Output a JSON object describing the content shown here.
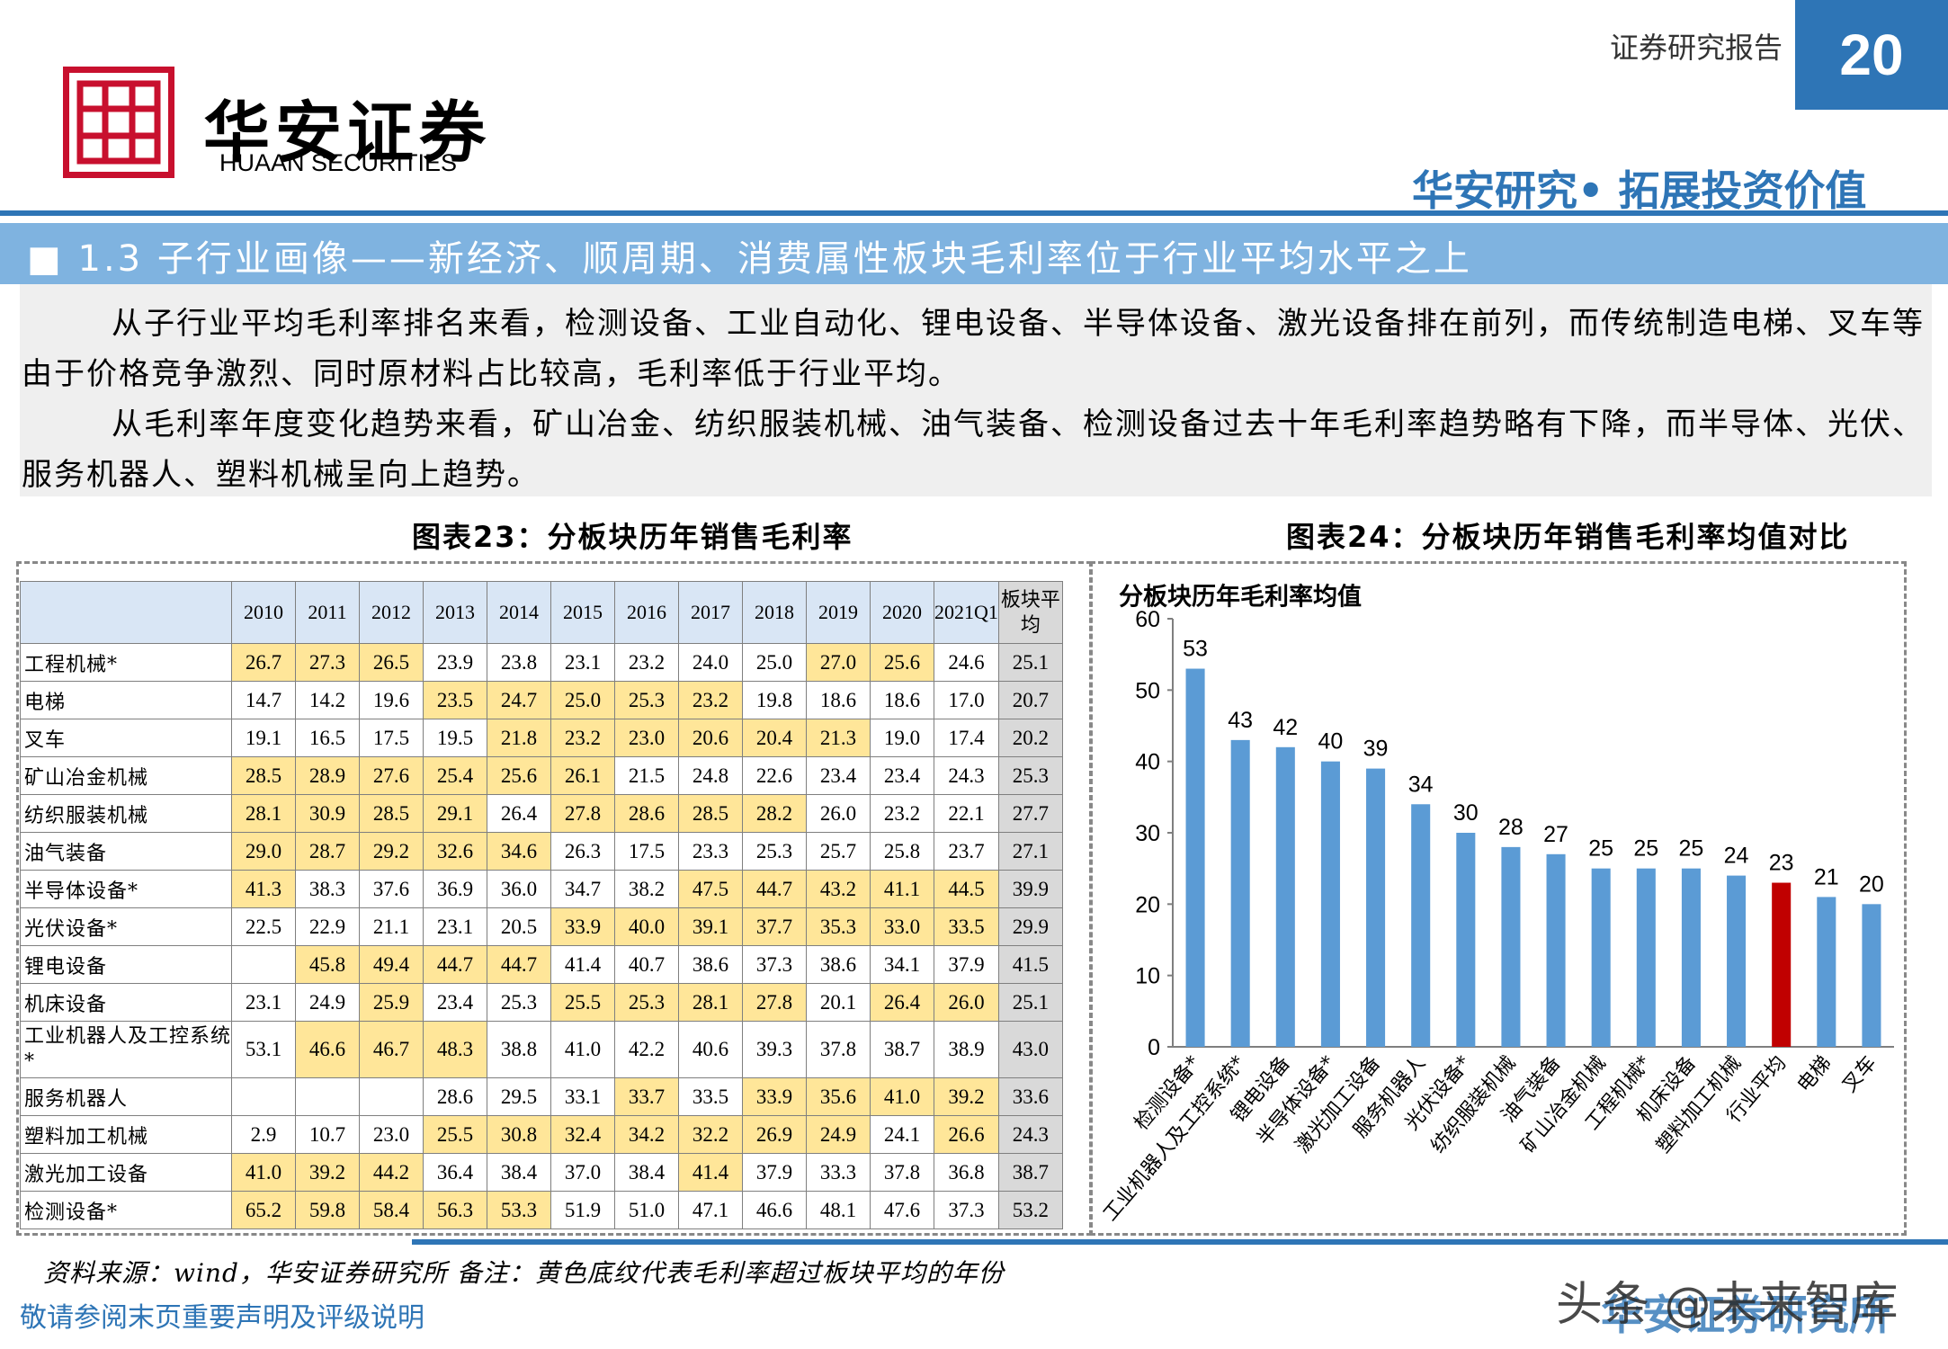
{
  "header": {
    "logo_cn": "华安证券",
    "logo_en": "HUAAN SECURITIES",
    "report_type": "证券研究报告",
    "page_number": "20",
    "slogan": "华安研究• 拓展投资价值"
  },
  "section": {
    "title": "■ 1.3 子行业画像——新经济、顺周期、消费属性板块毛利率位于行业平均水平之上"
  },
  "paragraphs": [
    "从子行业平均毛利率排名来看，检测设备、工业自动化、锂电设备、半导体设备、激光设备排在前列，而传统制造电梯、叉车等由于价格竞争激烈、同时原材料占比较高，毛利率低于行业平均。",
    "从毛利率年度变化趋势来看，矿山冶金、纺织服装机械、油气装备、检测设备过去十年毛利率趋势略有下降，而半导体、光伏、服务机器人、塑料机械呈向上趋势。"
  ],
  "table23": {
    "caption": "图表23：分板块历年销售毛利率",
    "columns": [
      "2010",
      "2011",
      "2012",
      "2013",
      "2014",
      "2015",
      "2016",
      "2017",
      "2018",
      "2019",
      "2020",
      "2021Q1",
      "板块平均"
    ],
    "rows": [
      {
        "name": "工程机械*",
        "values": [
          "26.7",
          "27.3",
          "26.5",
          "23.9",
          "23.8",
          "23.1",
          "23.2",
          "24.0",
          "25.0",
          "27.0",
          "25.6",
          "24.6",
          "25.1"
        ],
        "hl": [
          1,
          1,
          1,
          0,
          0,
          0,
          0,
          0,
          0,
          1,
          1,
          0
        ]
      },
      {
        "name": "电梯",
        "values": [
          "14.7",
          "14.2",
          "19.6",
          "23.5",
          "24.7",
          "25.0",
          "25.3",
          "23.2",
          "19.8",
          "18.6",
          "18.6",
          "17.0",
          "20.7"
        ],
        "hl": [
          0,
          0,
          0,
          1,
          1,
          1,
          1,
          1,
          0,
          0,
          0,
          0
        ]
      },
      {
        "name": "叉车",
        "values": [
          "19.1",
          "16.5",
          "17.5",
          "19.5",
          "21.8",
          "23.2",
          "23.0",
          "20.6",
          "20.4",
          "21.3",
          "19.0",
          "17.4",
          "20.2"
        ],
        "hl": [
          0,
          0,
          0,
          0,
          1,
          1,
          1,
          1,
          1,
          1,
          0,
          0
        ]
      },
      {
        "name": "矿山冶金机械",
        "values": [
          "28.5",
          "28.9",
          "27.6",
          "25.4",
          "25.6",
          "26.1",
          "21.5",
          "24.8",
          "22.6",
          "23.4",
          "23.4",
          "24.3",
          "25.3"
        ],
        "hl": [
          1,
          1,
          1,
          1,
          1,
          1,
          0,
          0,
          0,
          0,
          0,
          0
        ]
      },
      {
        "name": "纺织服装机械",
        "values": [
          "28.1",
          "30.9",
          "28.5",
          "29.1",
          "26.4",
          "27.8",
          "28.6",
          "28.5",
          "28.2",
          "26.0",
          "23.2",
          "22.1",
          "27.7"
        ],
        "hl": [
          1,
          1,
          1,
          1,
          0,
          1,
          1,
          1,
          1,
          0,
          0,
          0
        ]
      },
      {
        "name": "油气装备",
        "values": [
          "29.0",
          "28.7",
          "29.2",
          "32.6",
          "34.6",
          "26.3",
          "17.5",
          "23.3",
          "25.3",
          "25.7",
          "25.8",
          "23.7",
          "27.1"
        ],
        "hl": [
          1,
          1,
          1,
          1,
          1,
          0,
          0,
          0,
          0,
          0,
          0,
          0
        ]
      },
      {
        "name": "半导体设备*",
        "values": [
          "41.3",
          "38.3",
          "37.6",
          "36.9",
          "36.0",
          "34.7",
          "38.2",
          "47.5",
          "44.7",
          "43.2",
          "41.1",
          "44.5",
          "39.9"
        ],
        "hl": [
          1,
          0,
          0,
          0,
          0,
          0,
          0,
          1,
          1,
          1,
          1,
          1
        ]
      },
      {
        "name": "光伏设备*",
        "values": [
          "22.5",
          "22.9",
          "21.1",
          "23.1",
          "20.5",
          "33.9",
          "40.0",
          "39.1",
          "37.7",
          "35.3",
          "33.0",
          "33.5",
          "29.9"
        ],
        "hl": [
          0,
          0,
          0,
          0,
          0,
          1,
          1,
          1,
          1,
          1,
          1,
          1
        ]
      },
      {
        "name": "锂电设备",
        "values": [
          "",
          "45.8",
          "49.4",
          "44.7",
          "44.7",
          "41.4",
          "40.7",
          "38.6",
          "37.3",
          "38.6",
          "34.1",
          "37.9",
          "41.5"
        ],
        "hl": [
          0,
          1,
          1,
          1,
          1,
          0,
          0,
          0,
          0,
          0,
          0,
          0
        ]
      },
      {
        "name": "机床设备",
        "values": [
          "23.1",
          "24.9",
          "25.9",
          "23.4",
          "25.3",
          "25.5",
          "25.3",
          "28.1",
          "27.8",
          "20.1",
          "26.4",
          "26.0",
          "25.1"
        ],
        "hl": [
          0,
          0,
          1,
          0,
          0,
          1,
          1,
          1,
          1,
          0,
          1,
          1
        ]
      },
      {
        "name": "工业机器人及工控系统*",
        "values": [
          "53.1",
          "46.6",
          "46.7",
          "48.3",
          "38.8",
          "41.0",
          "42.2",
          "40.6",
          "39.3",
          "37.8",
          "38.7",
          "38.9",
          "43.0"
        ],
        "hl": [
          0,
          1,
          1,
          1,
          0,
          0,
          0,
          0,
          0,
          0,
          0,
          0
        ]
      },
      {
        "name": "服务机器人",
        "values": [
          "",
          "",
          "",
          "28.6",
          "29.5",
          "33.1",
          "33.7",
          "33.5",
          "33.9",
          "35.6",
          "41.0",
          "39.2",
          "33.6"
        ],
        "hl": [
          0,
          0,
          0,
          0,
          0,
          0,
          1,
          0,
          1,
          1,
          1,
          1
        ]
      },
      {
        "name": "塑料加工机械",
        "values": [
          "2.9",
          "10.7",
          "23.0",
          "25.5",
          "30.8",
          "32.4",
          "34.2",
          "32.2",
          "26.9",
          "24.9",
          "24.1",
          "26.6",
          "24.3"
        ],
        "hl": [
          0,
          0,
          0,
          1,
          1,
          1,
          1,
          1,
          1,
          1,
          0,
          1
        ]
      },
      {
        "name": "激光加工设备",
        "values": [
          "41.0",
          "39.2",
          "44.2",
          "36.4",
          "38.4",
          "37.0",
          "38.4",
          "41.4",
          "37.9",
          "33.3",
          "37.8",
          "36.8",
          "38.7"
        ],
        "hl": [
          1,
          1,
          1,
          0,
          0,
          0,
          0,
          1,
          0,
          0,
          0,
          0
        ]
      },
      {
        "name": "检测设备*",
        "values": [
          "65.2",
          "59.8",
          "58.4",
          "56.3",
          "53.3",
          "51.9",
          "51.0",
          "47.1",
          "46.6",
          "48.1",
          "47.6",
          "37.3",
          "53.2"
        ],
        "hl": [
          1,
          1,
          1,
          1,
          1,
          0,
          0,
          0,
          0,
          0,
          0,
          0
        ]
      }
    ]
  },
  "chart_data": {
    "type": "bar",
    "caption": "图表24：分板块历年销售毛利率均值对比",
    "title": "分板块历年毛利率均值",
    "categories": [
      "检测设备*",
      "工业机器人及工控系统*",
      "锂电设备",
      "半导体设备*",
      "激光加工设备",
      "服务机器人",
      "光伏设备*",
      "纺织服装机械",
      "油气装备",
      "矿山冶金机械",
      "工程机械*",
      "机床设备",
      "塑料加工机械",
      "行业平均",
      "电梯",
      "叉车"
    ],
    "values": [
      53,
      43,
      42,
      40,
      39,
      34,
      30,
      28,
      27,
      25,
      25,
      25,
      24,
      23,
      21,
      20
    ],
    "value_labels": [
      "53",
      "43",
      "42",
      "40",
      "39",
      "34",
      "30",
      "28",
      "27",
      "25",
      "25",
      "25",
      "24",
      "23",
      "21",
      "20"
    ],
    "yticks": [
      "0",
      "10",
      "20",
      "30",
      "40",
      "50",
      "60"
    ],
    "ylim": [
      0,
      60
    ],
    "bar_color": "#5b9bd5",
    "highlight_color": "#c00000",
    "highlight_index": 13
  },
  "footer": {
    "source_note": "资料来源：wind，华安证券研究所 备注：黄色底纹代表毛利率超过板块平均的年份",
    "disclaimer": "敬请参阅末页重要声明及评级说明",
    "brand": "华安证券研究所",
    "watermark": "头条 @未来智库"
  }
}
